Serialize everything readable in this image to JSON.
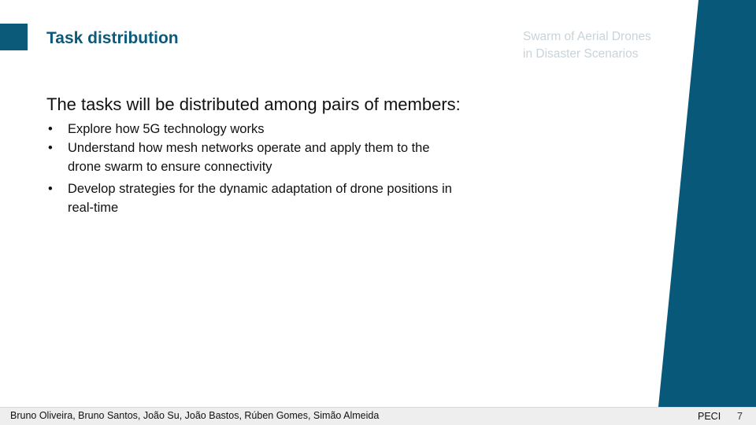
{
  "header": {
    "title": "Task distribution",
    "subtitle_lines": [
      "Swarm of Aerial Drones",
      "in Disaster Scenarios"
    ]
  },
  "content": {
    "intro": "The tasks will be distributed among pairs of members:",
    "bullets": [
      "Explore how 5G technology works",
      "Understand how mesh networks operate and apply them to the drone swarm to ensure connectivity",
      "Develop strategies for the dynamic adaptation of drone positions in real-time"
    ],
    "bullet_symbol": "•"
  },
  "footer": {
    "authors": "Bruno Oliveira, Bruno Santos, João Su, João Bastos, Rúben Gomes, Simão Almeida",
    "course": "PECI",
    "page_number": "7"
  },
  "colors": {
    "accent": "#0b5a7a",
    "band": "#08587a",
    "subtitle": "#c9d3da",
    "footer_bg": "#eeeeee"
  }
}
